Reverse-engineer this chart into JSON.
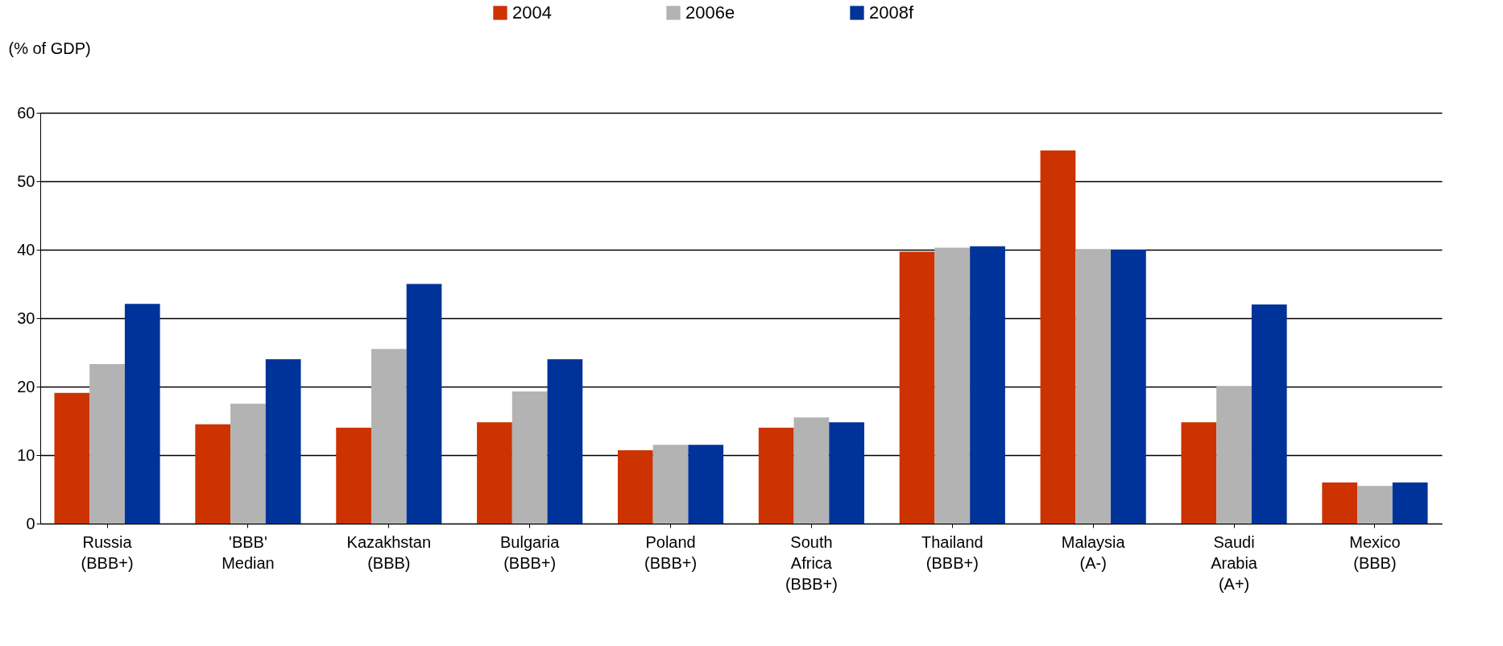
{
  "chart_data": {
    "type": "bar",
    "ylabel": "(% of GDP)",
    "categories": [
      "Russia (BBB+)",
      "'BBB' Median",
      "Kazakhstan (BBB)",
      "Bulgaria (BBB+)",
      "Poland (BBB+)",
      "South Africa (BBB+)",
      "Thailand (BBB+)",
      "Malaysia (A-)",
      "Saudi Arabia (A+)",
      "Mexico (BBB)"
    ],
    "series": [
      {
        "name": "2004",
        "color": "#cc3300",
        "values": [
          19.1,
          14.5,
          14,
          14.8,
          10.7,
          14,
          39.7,
          54.5,
          14.8,
          6
        ]
      },
      {
        "name": "2006e",
        "color": "#b3b3b3",
        "values": [
          23.3,
          17.5,
          25.5,
          19.3,
          11.5,
          15.5,
          40.3,
          40,
          20,
          5.5
        ]
      },
      {
        "name": "2008f",
        "color": "#003399",
        "values": [
          32.1,
          24,
          35,
          24,
          11.5,
          14.8,
          40.5,
          40,
          32,
          6
        ]
      }
    ],
    "ylim": [
      0,
      60
    ],
    "yticks": [
      0,
      10,
      20,
      30,
      40,
      50,
      60
    ],
    "grid": "y",
    "legend": "top"
  }
}
